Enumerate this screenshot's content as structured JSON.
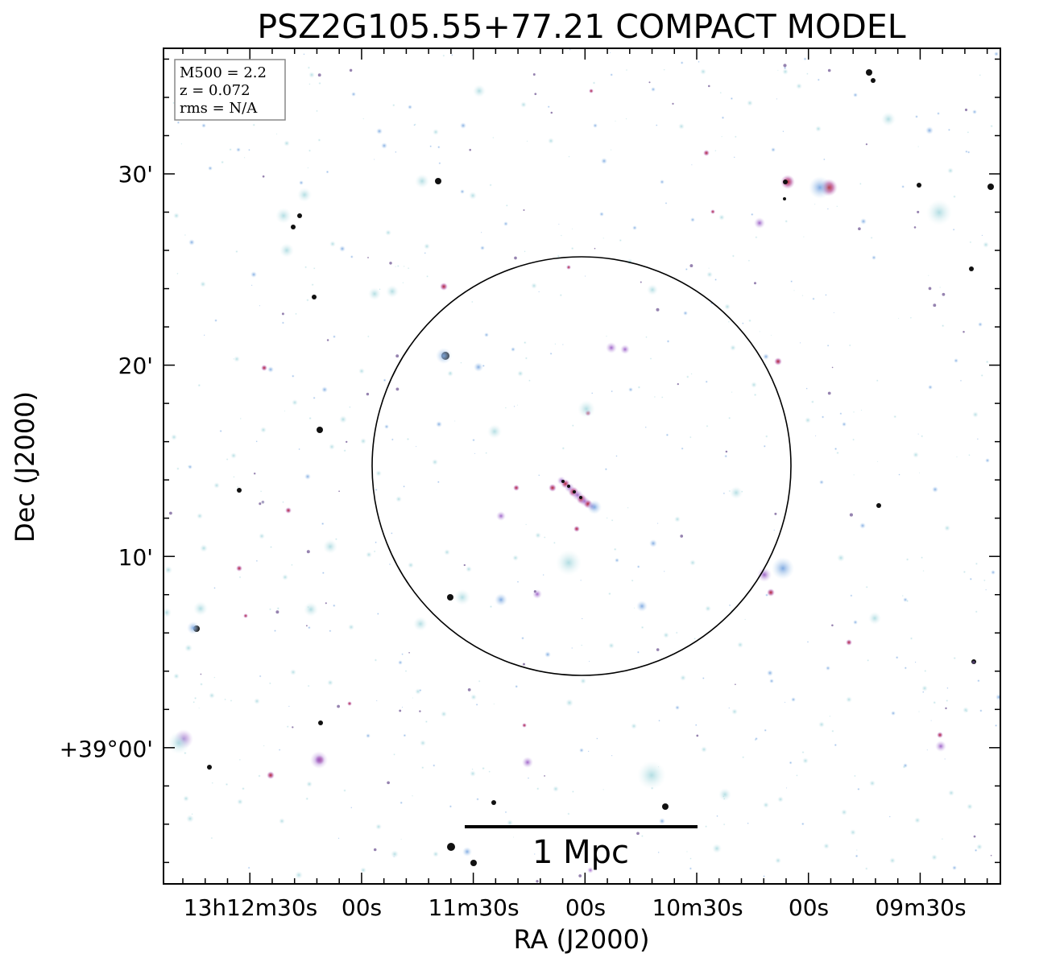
{
  "figure": {
    "title": "PSZ2G105.55+77.21 COMPACT MODEL",
    "xlabel": "RA (J2000)",
    "ylabel": "Dec (J2000)",
    "x_ticks": [
      "13h12m30s",
      "00s",
      "11m30s",
      "00s",
      "10m30s",
      "00s",
      "09m30s"
    ],
    "y_ticks": [
      "30'",
      "20'",
      "10'",
      "+39°00'"
    ],
    "info_box": {
      "m500": "M500 = 2.2",
      "redshift": "z = 0.072",
      "rms": "rms = N/A"
    },
    "scale_bar": {
      "label": "1 Mpc"
    },
    "colors": {
      "background": "#ffffff",
      "frame": "#000000",
      "source_cyan": "#bfe3e8",
      "source_blue": "#8fb6e6",
      "source_violet": "#b88bd6",
      "source_red": "#c4303a",
      "source_dark": "#111111"
    }
  }
}
